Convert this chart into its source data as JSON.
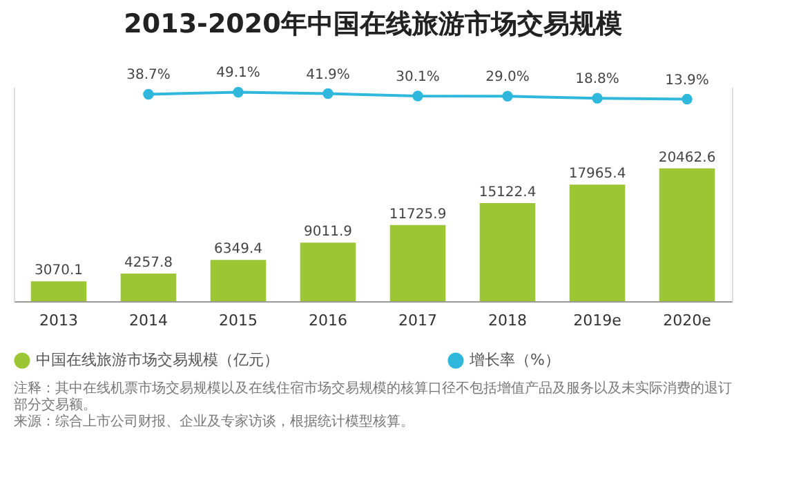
{
  "chart_data": {
    "type": "bar",
    "title": "2013-2020年中国在线旅游市场交易规模",
    "categories": [
      "2013",
      "2014",
      "2015",
      "2016",
      "2017",
      "2018",
      "2019e",
      "2020e"
    ],
    "series": [
      {
        "name": "中国在线旅游市场交易规模（亿元）",
        "color": "#9dc634",
        "values": [
          3070.1,
          4257.8,
          6349.4,
          9011.9,
          11725.9,
          15122.4,
          17965.4,
          20462.6
        ]
      },
      {
        "name": "增长率（%）",
        "type": "line",
        "axis": "y2",
        "color": "#2fb8dc",
        "marker": "circle",
        "values": [
          null,
          38.7,
          49.1,
          41.9,
          30.1,
          29.0,
          18.8,
          13.9
        ],
        "value_labels": [
          null,
          "38.7%",
          "49.1%",
          "41.9%",
          "30.1%",
          "29.0%",
          "18.8%",
          "13.9%"
        ]
      }
    ],
    "ylim": [
      0,
      33000
    ],
    "y2lim": [
      -1000,
      75
    ],
    "data_labels": true,
    "tick_labels": "x",
    "grid": false,
    "legend": "bottom",
    "annotations": [
      "注释：其中在线机票市场交易规模以及在线住宿市场交易规模的核算口径不包括增值产品及服务以及未实际消费的退订部分交易额。",
      "来源：综合上市公司财报、企业及专家访谈，根据统计模型核算。"
    ]
  }
}
